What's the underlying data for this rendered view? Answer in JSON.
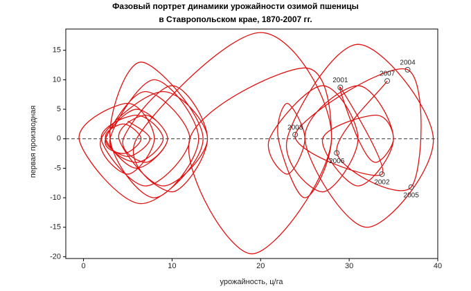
{
  "chart_data": {
    "type": "phase",
    "title": [
      "Фазовый портрет динамики урожайности озимой пшеницы",
      "в Ставропольском крае, 1870-2007 гг."
    ],
    "xlabel": "урожайность, ц/га",
    "ylabel": "первая производная",
    "xlim": [
      -2,
      40
    ],
    "ylim": [
      -20.3,
      18.6
    ],
    "xticks": [
      0,
      10,
      20,
      30,
      40
    ],
    "yticks": [
      -20,
      -15,
      -10,
      -5,
      0,
      5,
      10,
      15
    ],
    "reference_line": 0,
    "series": [
      {
        "color": "#e01010",
        "x": [
          5,
          7.5,
          5,
          2.5,
          6,
          9.5,
          6,
          2.5,
          4.5,
          6.5,
          4.5,
          2.5,
          7,
          12,
          7,
          2,
          6,
          9,
          6,
          3,
          8,
          13,
          8,
          3,
          6.5,
          13.5,
          6.5,
          -0.5,
          5,
          8,
          5,
          2,
          9,
          14,
          9,
          4,
          7,
          9.5,
          7,
          4.5,
          10,
          14,
          10,
          6,
          20,
          28,
          19,
          12,
          25,
          28,
          25,
          22,
          23,
          25,
          23,
          21,
          27,
          31,
          27,
          23,
          31,
          39.5,
          32,
          25,
          31,
          35,
          31,
          27,
          33,
          35,
          33,
          31,
          29,
          33.7,
          23.9,
          36.6,
          37,
          28.6,
          34.3
        ],
        "y": [
          3,
          0,
          -3,
          0,
          5,
          0,
          -5,
          0,
          2.5,
          0,
          -2.5,
          0,
          8,
          0,
          -8,
          0,
          4,
          0,
          -4,
          0,
          10,
          0,
          -10,
          0,
          13,
          0,
          -11,
          0,
          6,
          0,
          -6,
          0,
          8,
          0,
          -8,
          0,
          4,
          0,
          -4,
          0,
          9,
          0,
          -9,
          0,
          18,
          0,
          -19.5,
          0,
          12,
          0,
          -10,
          0,
          6,
          0,
          -6,
          0,
          9,
          0,
          -9,
          0,
          16,
          0,
          -15,
          0,
          9,
          0,
          -8,
          0,
          4,
          0,
          -4,
          0,
          8.7,
          -6,
          0.7,
          11.7,
          -8.2,
          -2.4,
          9.8
        ]
      }
    ],
    "annotations": {
      "x": [
        29,
        33.7,
        23.9,
        36.6,
        37,
        28.6,
        34.3
      ],
      "y": [
        8.7,
        -6,
        0.7,
        11.7,
        -8.2,
        -2.4,
        9.8
      ],
      "labels": [
        "2001",
        "2002",
        "2003",
        "2004",
        "2005",
        "2006",
        "2007"
      ]
    }
  }
}
